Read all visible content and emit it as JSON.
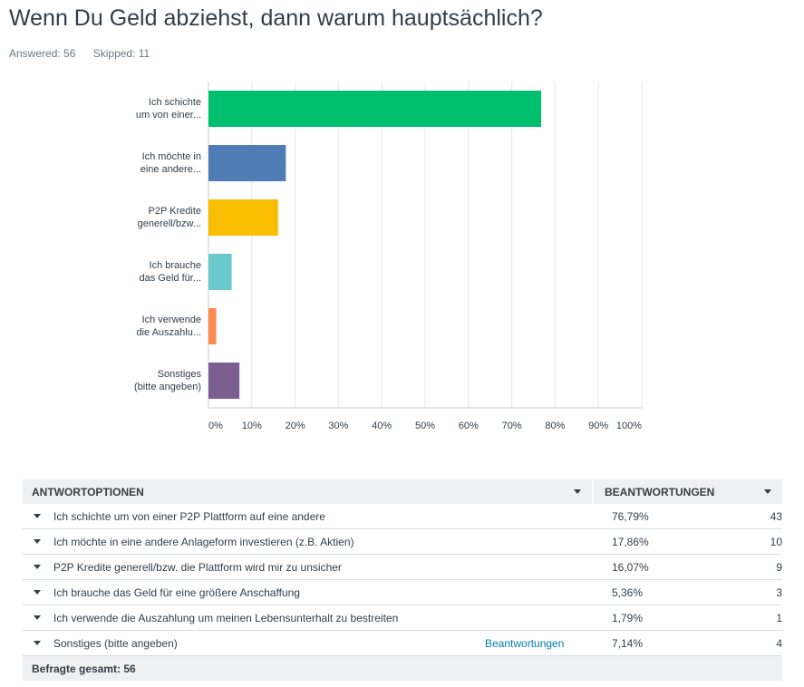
{
  "question": {
    "title": "Wenn Du Geld abziehst, dann warum hauptsächlich?",
    "answered": "Answered: 56",
    "skipped": "Skipped: 11"
  },
  "chart_data": {
    "type": "bar",
    "orientation": "horizontal",
    "categories": [
      [
        "Ich schichte",
        "um von einer..."
      ],
      [
        "Ich möchte in",
        "eine andere..."
      ],
      [
        "P2P Kredite",
        "generell/bzw..."
      ],
      [
        "Ich brauche",
        "das Geld für..."
      ],
      [
        "Ich verwende",
        "die Auszahlu..."
      ],
      [
        "Sonstiges",
        "(bitte angeben)"
      ]
    ],
    "values": [
      76.79,
      17.86,
      16.07,
      5.36,
      1.79,
      7.14
    ],
    "colors": [
      "#00bf6f",
      "#507cb6",
      "#f9be00",
      "#6bc8cd",
      "#ff8b4f",
      "#7d5e90"
    ],
    "xticks": [
      "0%",
      "10%",
      "20%",
      "30%",
      "40%",
      "50%",
      "60%",
      "70%",
      "80%",
      "90%",
      "100%"
    ],
    "xlim": [
      0,
      100
    ],
    "grid": true
  },
  "table": {
    "header_option": "ANTWORTOPTIONEN",
    "header_answers": "BEANTWORTUNGEN",
    "rows": [
      {
        "label": "Ich schichte um von einer P2P Plattform auf eine andere",
        "link": "",
        "pct": "76,79%",
        "count": "43"
      },
      {
        "label": "Ich möchte in eine andere Anlageform investieren (z.B. Aktien)",
        "link": "",
        "pct": "17,86%",
        "count": "10"
      },
      {
        "label": "P2P Kredite generell/bzw. die Plattform wird mir zu unsicher",
        "link": "",
        "pct": "16,07%",
        "count": "9"
      },
      {
        "label": "Ich brauche das Geld für eine größere Anschaffung",
        "link": "",
        "pct": "5,36%",
        "count": "3"
      },
      {
        "label": "Ich verwende die Auszahlung um meinen Lebensunterhalt zu bestreiten",
        "link": "",
        "pct": "1,79%",
        "count": "1"
      },
      {
        "label": "Sonstiges (bitte angeben)",
        "link": "Beantwortungen",
        "pct": "7,14%",
        "count": "4"
      }
    ],
    "footer": "Befragte gesamt: 56"
  }
}
